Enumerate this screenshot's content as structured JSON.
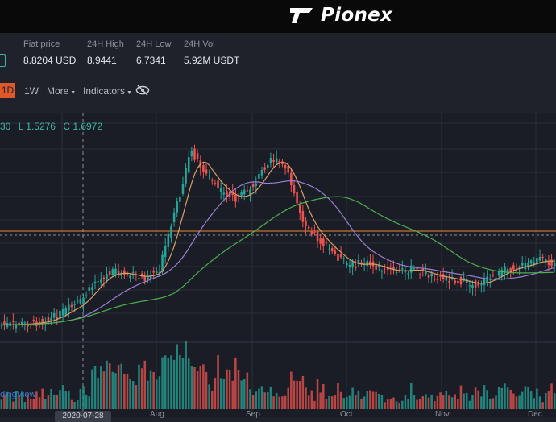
{
  "brand": {
    "name": "Pionex"
  },
  "stats": [
    {
      "label": "Fiat price",
      "value": "8.8204 USD"
    },
    {
      "label": "24H High",
      "value": "8.9441"
    },
    {
      "label": "24H Low",
      "value": "6.7341"
    },
    {
      "label": "24H Vol",
      "value": "5.92M USDT"
    }
  ],
  "toolbar": {
    "active_interval": "1D",
    "interval_1w": "1W",
    "more": "More",
    "indicators": "Indicators",
    "eye_icon": "eye-off-icon"
  },
  "ohlc": {
    "prefix": "30",
    "low": "L 1.5276",
    "close": "C 1.6972"
  },
  "watermark": "dingView",
  "crosshair_date": "2020-07-28",
  "x_labels": [
    "Aug",
    "Sep",
    "Oct",
    "Nov",
    "Dec"
  ],
  "colors": {
    "up": "#26a69a",
    "down": "#ef5350",
    "accent": "#e0582a",
    "ma_fast": "#d9a066",
    "ma_mid": "#9b7fd4",
    "ma_slow": "#4caf50",
    "price_line": "#f0882c"
  },
  "chart_data": {
    "type": "candlestick",
    "x_labels": [
      "Aug",
      "Sep",
      "Oct",
      "Nov",
      "Dec"
    ],
    "series_close": [
      0.52,
      0.53,
      0.55,
      0.6,
      0.75,
      0.9,
      1.25,
      1.4,
      1.35,
      1.3,
      1.45,
      2.4,
      3.4,
      3.0,
      2.7,
      2.6,
      2.85,
      3.3,
      3.1,
      2.3,
      1.95,
      1.7,
      1.5,
      1.55,
      1.45,
      1.4,
      1.45,
      1.35,
      1.3,
      1.25,
      1.18,
      1.3,
      1.45,
      1.5,
      1.6,
      1.55
    ]
  }
}
